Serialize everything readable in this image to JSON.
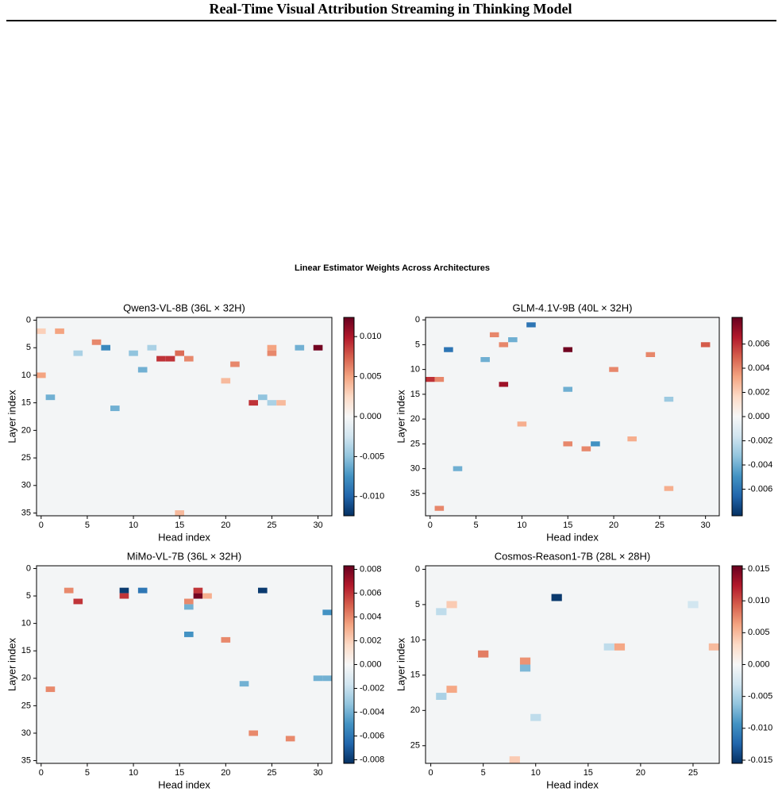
{
  "page": {
    "title": "Real-Time Visual Attribution Streaming in Thinking Model"
  },
  "figure_title": "Linear Estimator Weights Across Architectures",
  "chart_data": [
    {
      "type": "heatmap",
      "title": "Qwen3-VL-8B (36L × 32H)",
      "xlabel": "Head index",
      "ylabel": "Layer index",
      "colormap": "RdBu_r",
      "xlim": [
        -0.5,
        31.5
      ],
      "ylim": [
        35.5,
        -0.5
      ],
      "xticks": [
        0,
        5,
        10,
        15,
        20,
        25,
        30
      ],
      "yticks": [
        0,
        5,
        10,
        15,
        20,
        25,
        30,
        35
      ],
      "clim": [
        -0.0124,
        0.0124
      ],
      "cticks": [
        {
          "value": 0.01,
          "label": "0.010"
        },
        0.005,
        {
          "value": 0,
          "label": "0.000"
        },
        -0.005,
        {
          "value": -0.01,
          "label": "-0.010"
        }
      ],
      "cells": [
        {
          "row": 2,
          "col": 2,
          "value": 0.005
        },
        {
          "row": 2,
          "col": 0,
          "value": 0.003
        },
        {
          "row": 5,
          "col": 30,
          "value": 0.012
        },
        {
          "row": 5,
          "col": 7,
          "value": -0.008
        },
        {
          "row": 5,
          "col": 28,
          "value": -0.006
        },
        {
          "row": 4,
          "col": 6,
          "value": 0.006
        },
        {
          "row": 7,
          "col": 13,
          "value": 0.009
        },
        {
          "row": 7,
          "col": 14,
          "value": 0.009
        },
        {
          "row": 6,
          "col": 15,
          "value": 0.007
        },
        {
          "row": 7,
          "col": 16,
          "value": 0.006
        },
        {
          "row": 6,
          "col": 10,
          "value": -0.005
        },
        {
          "row": 9,
          "col": 11,
          "value": -0.006
        },
        {
          "row": 8,
          "col": 21,
          "value": 0.006
        },
        {
          "row": 10,
          "col": 0,
          "value": 0.005
        },
        {
          "row": 14,
          "col": 1,
          "value": -0.006
        },
        {
          "row": 14,
          "col": 24,
          "value": -0.005
        },
        {
          "row": 15,
          "col": 23,
          "value": 0.009
        },
        {
          "row": 16,
          "col": 8,
          "value": -0.006
        },
        {
          "row": 6,
          "col": 25,
          "value": 0.006
        },
        {
          "row": 5,
          "col": 25,
          "value": 0.005
        },
        {
          "row": 5,
          "col": 12,
          "value": -0.004
        },
        {
          "row": 6,
          "col": 4,
          "value": -0.004
        },
        {
          "row": 15,
          "col": 25,
          "value": -0.004
        },
        {
          "row": 15,
          "col": 26,
          "value": 0.004
        },
        {
          "row": 35,
          "col": 15,
          "value": 0.004
        },
        {
          "row": 11,
          "col": 20,
          "value": 0.004
        }
      ]
    },
    {
      "type": "heatmap",
      "title": "GLM-4.1V-9B (40L × 32H)",
      "xlabel": "Head index",
      "ylabel": "Layer index",
      "colormap": "RdBu_r",
      "xlim": [
        -0.5,
        31.5
      ],
      "ylim": [
        39.5,
        -0.5
      ],
      "xticks": [
        0,
        5,
        10,
        15,
        20,
        25,
        30
      ],
      "yticks": [
        0,
        5,
        10,
        15,
        20,
        25,
        30,
        35
      ],
      "clim": [
        -0.0082,
        0.0082
      ],
      "cticks": [
        0.006,
        0.004,
        0.002,
        {
          "value": 0,
          "label": "0.000"
        },
        -0.002,
        -0.004,
        -0.006
      ],
      "cells": [
        {
          "row": 1,
          "col": 11,
          "value": -0.006
        },
        {
          "row": 3,
          "col": 7,
          "value": 0.004
        },
        {
          "row": 5,
          "col": 8,
          "value": 0.004
        },
        {
          "row": 4,
          "col": 9,
          "value": -0.004
        },
        {
          "row": 6,
          "col": 15,
          "value": 0.008
        },
        {
          "row": 6,
          "col": 2,
          "value": -0.006
        },
        {
          "row": 8,
          "col": 6,
          "value": -0.004
        },
        {
          "row": 12,
          "col": 0,
          "value": 0.006
        },
        {
          "row": 12,
          "col": 1,
          "value": 0.004
        },
        {
          "row": 13,
          "col": 8,
          "value": 0.007
        },
        {
          "row": 14,
          "col": 15,
          "value": -0.004
        },
        {
          "row": 5,
          "col": 30,
          "value": 0.005
        },
        {
          "row": 16,
          "col": 26,
          "value": -0.003
        },
        {
          "row": 25,
          "col": 18,
          "value": -0.005
        },
        {
          "row": 25,
          "col": 15,
          "value": 0.004
        },
        {
          "row": 26,
          "col": 17,
          "value": 0.004
        },
        {
          "row": 24,
          "col": 22,
          "value": 0.003
        },
        {
          "row": 30,
          "col": 3,
          "value": -0.004
        },
        {
          "row": 38,
          "col": 1,
          "value": 0.004
        },
        {
          "row": 34,
          "col": 26,
          "value": 0.003
        },
        {
          "row": 21,
          "col": 10,
          "value": 0.003
        },
        {
          "row": 10,
          "col": 20,
          "value": 0.004
        },
        {
          "row": 7,
          "col": 24,
          "value": 0.004
        }
      ]
    },
    {
      "type": "heatmap",
      "title": "MiMo-VL-7B (36L × 32H)",
      "xlabel": "Head index",
      "ylabel": "Layer index",
      "colormap": "RdBu_r",
      "xlim": [
        -0.5,
        31.5
      ],
      "ylim": [
        35.5,
        -0.5
      ],
      "xticks": [
        0,
        5,
        10,
        15,
        20,
        25,
        30
      ],
      "yticks": [
        0,
        5,
        10,
        15,
        20,
        25,
        30,
        35
      ],
      "clim": [
        -0.0083,
        0.0083
      ],
      "cticks": [
        0.008,
        0.006,
        0.004,
        0.002,
        {
          "value": 0,
          "label": "0.000"
        },
        -0.002,
        -0.004,
        -0.006,
        -0.008
      ],
      "cells": [
        {
          "row": 4,
          "col": 9,
          "value": -0.008
        },
        {
          "row": 4,
          "col": 11,
          "value": -0.006
        },
        {
          "row": 4,
          "col": 24,
          "value": -0.008
        },
        {
          "row": 5,
          "col": 9,
          "value": 0.006
        },
        {
          "row": 5,
          "col": 17,
          "value": 0.008
        },
        {
          "row": 4,
          "col": 17,
          "value": 0.006
        },
        {
          "row": 6,
          "col": 4,
          "value": 0.006
        },
        {
          "row": 7,
          "col": 16,
          "value": -0.004
        },
        {
          "row": 6,
          "col": 16,
          "value": 0.004
        },
        {
          "row": 8,
          "col": 31,
          "value": -0.005
        },
        {
          "row": 12,
          "col": 16,
          "value": -0.005
        },
        {
          "row": 13,
          "col": 20,
          "value": 0.004
        },
        {
          "row": 20,
          "col": 30,
          "value": -0.004
        },
        {
          "row": 20,
          "col": 31,
          "value": -0.004
        },
        {
          "row": 21,
          "col": 22,
          "value": -0.004
        },
        {
          "row": 22,
          "col": 1,
          "value": 0.004
        },
        {
          "row": 30,
          "col": 23,
          "value": 0.004
        },
        {
          "row": 31,
          "col": 27,
          "value": 0.004
        },
        {
          "row": 4,
          "col": 3,
          "value": 0.004
        },
        {
          "row": 5,
          "col": 18,
          "value": 0.003
        }
      ]
    },
    {
      "type": "heatmap",
      "title": "Cosmos-Reason1-7B (28L × 28H)",
      "xlabel": "Head index",
      "ylabel": "Layer index",
      "colormap": "RdBu_r",
      "xlim": [
        -0.5,
        27.5
      ],
      "ylim": [
        27.5,
        -0.5
      ],
      "xticks": [
        0,
        5,
        10,
        15,
        20,
        25
      ],
      "yticks": [
        0,
        5,
        10,
        15,
        20,
        25
      ],
      "clim": [
        -0.0155,
        0.0155
      ],
      "cticks": [
        0.015,
        {
          "value": 0.01,
          "label": "0.010"
        },
        0.005,
        {
          "value": 0,
          "label": "0.000"
        },
        -0.005,
        {
          "value": -0.01,
          "label": "-0.010"
        },
        -0.015
      ],
      "cells": [
        {
          "row": 4,
          "col": 12,
          "value": -0.015
        },
        {
          "row": 12,
          "col": 5,
          "value": 0.008
        },
        {
          "row": 13,
          "col": 9,
          "value": 0.007
        },
        {
          "row": 14,
          "col": 9,
          "value": -0.007
        },
        {
          "row": 11,
          "col": 17,
          "value": -0.004
        },
        {
          "row": 11,
          "col": 18,
          "value": 0.006
        },
        {
          "row": 11,
          "col": 27,
          "value": 0.005
        },
        {
          "row": 17,
          "col": 2,
          "value": 0.006
        },
        {
          "row": 18,
          "col": 1,
          "value": -0.005
        },
        {
          "row": 5,
          "col": 2,
          "value": 0.004
        },
        {
          "row": 21,
          "col": 10,
          "value": -0.004
        },
        {
          "row": 5,
          "col": 25,
          "value": -0.003
        },
        {
          "row": 27,
          "col": 8,
          "value": 0.004
        },
        {
          "row": 6,
          "col": 1,
          "value": -0.004
        }
      ]
    }
  ]
}
